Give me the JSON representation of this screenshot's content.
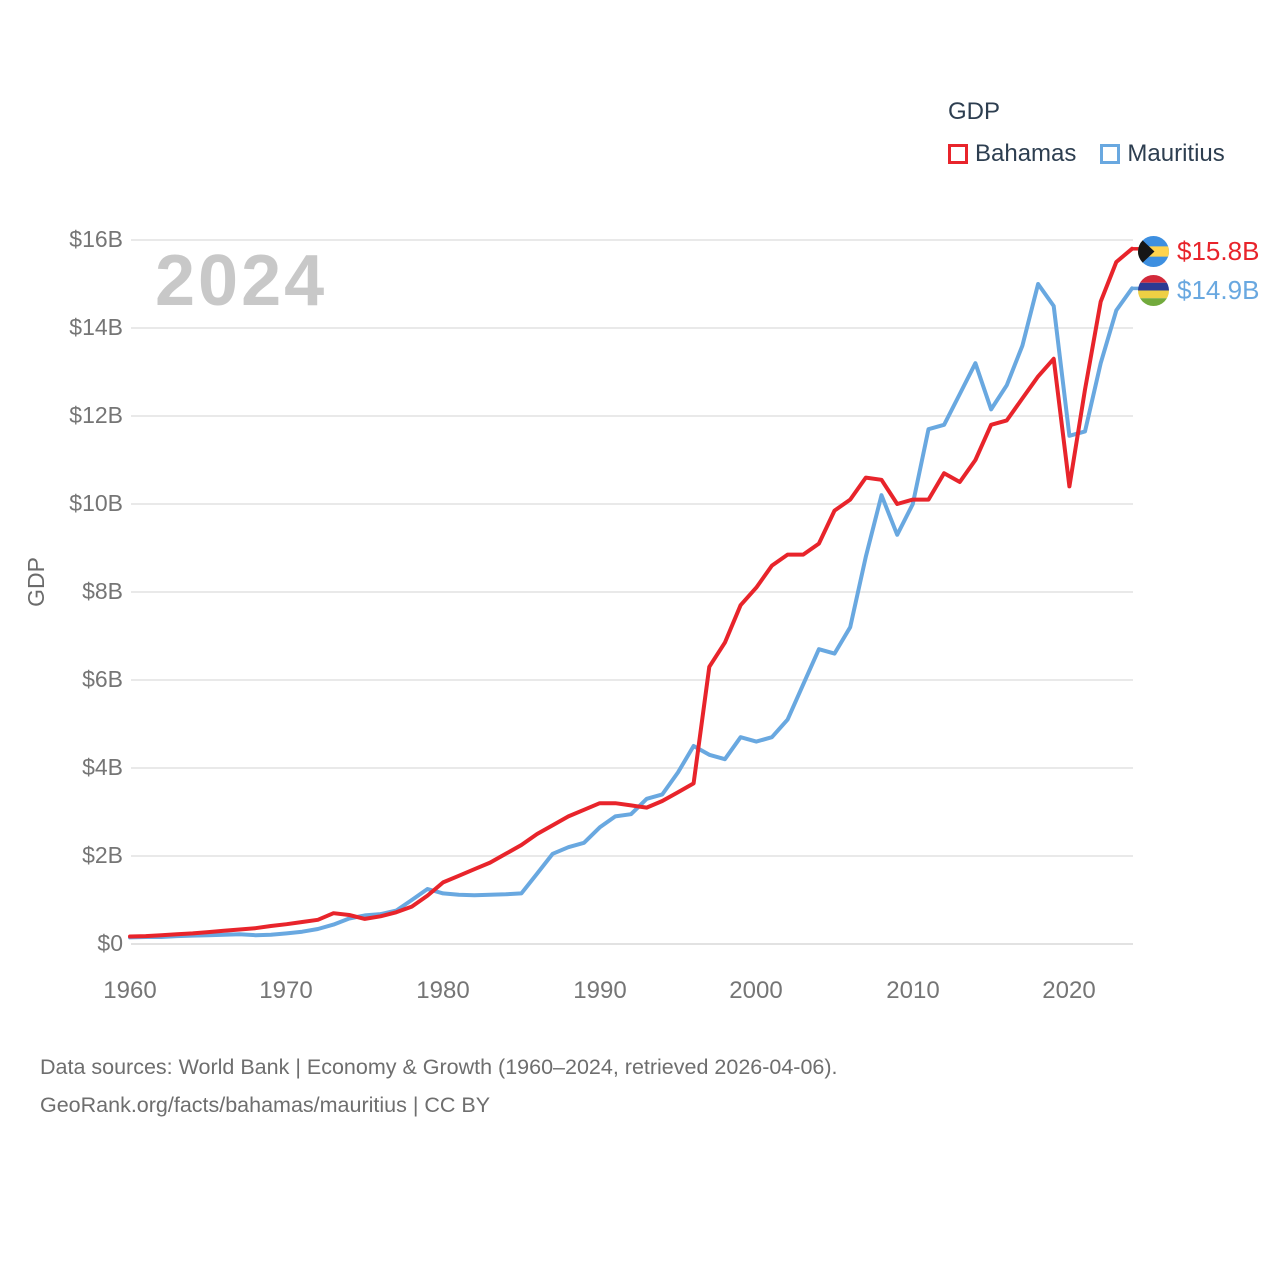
{
  "legend": {
    "title": "GDP",
    "items": [
      {
        "label": "Bahamas",
        "color": "#e8242b"
      },
      {
        "label": "Mauritius",
        "color": "#69a8e0"
      }
    ]
  },
  "watermark_year": "2024",
  "axis": {
    "y_title": "GDP"
  },
  "end_labels": [
    {
      "series": "Bahamas",
      "text": "$15.8B",
      "color": "#e8242b",
      "flag": "bahamas-flag-icon"
    },
    {
      "series": "Mauritius",
      "text": "$14.9B",
      "color": "#69a8e0",
      "flag": "mauritius-flag-icon"
    }
  ],
  "footer": {
    "line1": "Data sources: World Bank | Economy & Growth (1960–2024, retrieved 2026-04-06).",
    "line2": "GeoRank.org/facts/bahamas/mauritius | CC BY"
  },
  "chart_data": {
    "type": "line",
    "title": "GDP",
    "ylabel": "GDP",
    "xlabel": "",
    "xlim": [
      1960,
      2024
    ],
    "ylim": [
      0,
      16
    ],
    "grid": "horizontal",
    "legend_position": "top-right",
    "x_ticks": [
      1960,
      1970,
      1980,
      1990,
      2000,
      2010,
      2020
    ],
    "y_ticks": [
      {
        "label": "$0",
        "value": 0
      },
      {
        "label": "$2B",
        "value": 2
      },
      {
        "label": "$4B",
        "value": 4
      },
      {
        "label": "$6B",
        "value": 6
      },
      {
        "label": "$8B",
        "value": 8
      },
      {
        "label": "$10B",
        "value": 10
      },
      {
        "label": "$12B",
        "value": 12
      },
      {
        "label": "$14B",
        "value": 14
      },
      {
        "label": "$16B",
        "value": 16
      }
    ],
    "x": [
      1960,
      1961,
      1962,
      1963,
      1964,
      1965,
      1966,
      1967,
      1968,
      1969,
      1970,
      1971,
      1972,
      1973,
      1974,
      1975,
      1976,
      1977,
      1978,
      1979,
      1980,
      1981,
      1982,
      1983,
      1984,
      1985,
      1986,
      1987,
      1988,
      1989,
      1990,
      1991,
      1992,
      1993,
      1994,
      1995,
      1996,
      1997,
      1998,
      1999,
      2000,
      2001,
      2002,
      2003,
      2004,
      2005,
      2006,
      2007,
      2008,
      2009,
      2010,
      2011,
      2012,
      2013,
      2014,
      2015,
      2016,
      2017,
      2018,
      2019,
      2020,
      2021,
      2022,
      2023,
      2024
    ],
    "series": [
      {
        "name": "Bahamas",
        "color": "#e8242b",
        "unit": "billion USD",
        "values": [
          0.17,
          0.18,
          0.2,
          0.22,
          0.24,
          0.27,
          0.3,
          0.33,
          0.36,
          0.41,
          0.45,
          0.5,
          0.55,
          0.7,
          0.66,
          0.57,
          0.63,
          0.72,
          0.85,
          1.1,
          1.4,
          1.55,
          1.7,
          1.85,
          2.05,
          2.25,
          2.5,
          2.7,
          2.9,
          3.05,
          3.2,
          3.2,
          3.15,
          3.1,
          3.25,
          3.45,
          3.65,
          6.3,
          6.85,
          7.7,
          8.1,
          8.6,
          8.85,
          8.85,
          9.1,
          9.85,
          10.1,
          10.6,
          10.55,
          10.0,
          10.1,
          10.1,
          10.7,
          10.5,
          11.0,
          11.8,
          11.9,
          12.4,
          12.9,
          13.3,
          10.4,
          12.6,
          14.6,
          15.5,
          15.8
        ]
      },
      {
        "name": "Mauritius",
        "color": "#69a8e0",
        "unit": "billion USD",
        "values": [
          0.15,
          0.16,
          0.16,
          0.18,
          0.19,
          0.2,
          0.21,
          0.22,
          0.2,
          0.21,
          0.24,
          0.28,
          0.34,
          0.44,
          0.58,
          0.65,
          0.68,
          0.76,
          1.0,
          1.25,
          1.15,
          1.12,
          1.11,
          1.12,
          1.13,
          1.15,
          1.6,
          2.05,
          2.2,
          2.3,
          2.65,
          2.9,
          2.95,
          3.3,
          3.4,
          3.9,
          4.5,
          4.3,
          4.2,
          4.7,
          4.6,
          4.7,
          5.1,
          5.9,
          6.7,
          6.6,
          7.2,
          8.8,
          10.2,
          9.3,
          10.0,
          11.7,
          11.8,
          12.5,
          13.2,
          12.15,
          12.7,
          13.6,
          15.0,
          14.5,
          11.55,
          11.65,
          13.2,
          14.4,
          14.9
        ]
      }
    ],
    "end_values": [
      {
        "series": "Bahamas",
        "text": "$15.8B"
      },
      {
        "series": "Mauritius",
        "text": "$14.9B"
      }
    ]
  }
}
